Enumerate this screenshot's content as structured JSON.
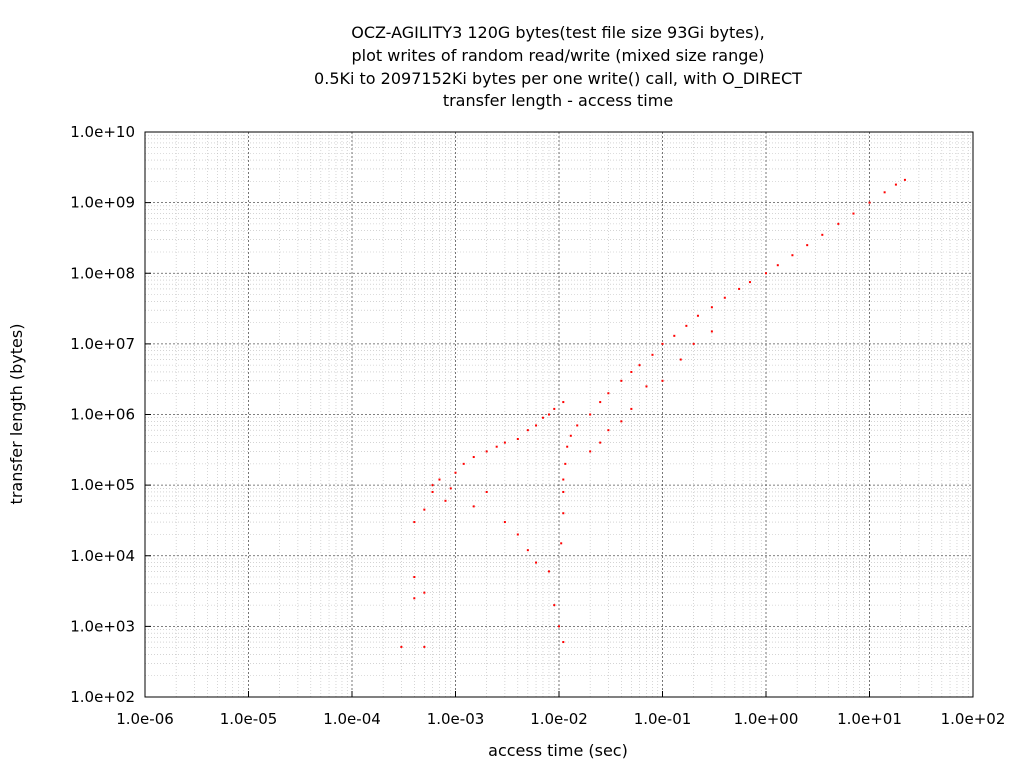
{
  "chart_data": {
    "type": "scatter",
    "title_lines": [
      "OCZ-AGILITY3 120G bytes(test file size 93Gi bytes),",
      "plot writes of random read/write (mixed size range)",
      "0.5Ki to 2097152Ki bytes per one write() call, with O_DIRECT",
      "transfer length - access time"
    ],
    "xlabel": "access time (sec)",
    "ylabel": "transfer length (bytes)",
    "xscale": "log",
    "yscale": "log",
    "xlim": [
      1e-06,
      100
    ],
    "ylim": [
      100,
      10000000000.0
    ],
    "x_ticks": [
      "1.0e-06",
      "1.0e-05",
      "1.0e-04",
      "1.0e-03",
      "1.0e-02",
      "1.0e-01",
      "1.0e+00",
      "1.0e+01",
      "1.0e+02"
    ],
    "y_ticks": [
      "1.0e+02",
      "1.0e+03",
      "1.0e+04",
      "1.0e+05",
      "1.0e+06",
      "1.0e+07",
      "1.0e+08",
      "1.0e+09",
      "1.0e+10"
    ],
    "grid": true,
    "minor_grid": true,
    "point_color": "#ff0000",
    "series": [
      {
        "points": [
          [
            0.0003,
            512
          ],
          [
            0.0005,
            512
          ],
          [
            0.0004,
            5000
          ],
          [
            0.0004,
            2500
          ],
          [
            0.0005,
            3000
          ],
          [
            0.0004,
            30000
          ],
          [
            0.0005,
            45000
          ],
          [
            0.0006,
            80000
          ],
          [
            0.0007,
            120000
          ],
          [
            0.0006,
            100000
          ],
          [
            0.0008,
            60000
          ],
          [
            0.0009,
            90000
          ],
          [
            0.001,
            150000
          ],
          [
            0.0012,
            200000
          ],
          [
            0.0015,
            250000
          ],
          [
            0.002,
            300000
          ],
          [
            0.0025,
            350000
          ],
          [
            0.003,
            400000
          ],
          [
            0.004,
            450000
          ],
          [
            0.005,
            600000
          ],
          [
            0.006,
            700000
          ],
          [
            0.007,
            900000
          ],
          [
            0.008,
            1000000
          ],
          [
            0.009,
            1200000
          ],
          [
            0.011,
            1500000
          ],
          [
            0.0015,
            50000
          ],
          [
            0.002,
            80000
          ],
          [
            0.003,
            30000
          ],
          [
            0.004,
            20000
          ],
          [
            0.005,
            12000
          ],
          [
            0.006,
            8000
          ],
          [
            0.008,
            6000
          ],
          [
            0.009,
            2000
          ],
          [
            0.01,
            1000
          ],
          [
            0.011,
            600
          ],
          [
            0.0105,
            15000
          ],
          [
            0.011,
            40000
          ],
          [
            0.011,
            80000
          ],
          [
            0.011,
            120000
          ],
          [
            0.0115,
            200000
          ],
          [
            0.012,
            350000
          ],
          [
            0.013,
            500000
          ],
          [
            0.015,
            700000
          ],
          [
            0.02,
            1000000
          ],
          [
            0.025,
            1500000
          ],
          [
            0.03,
            2000000
          ],
          [
            0.04,
            3000000
          ],
          [
            0.05,
            4000000
          ],
          [
            0.06,
            5000000
          ],
          [
            0.08,
            7000000
          ],
          [
            0.1,
            10000000
          ],
          [
            0.13,
            13000000
          ],
          [
            0.17,
            18000000
          ],
          [
            0.22,
            25000000
          ],
          [
            0.3,
            33000000
          ],
          [
            0.4,
            45000000
          ],
          [
            0.55,
            60000000
          ],
          [
            0.7,
            75000000
          ],
          [
            1.0,
            100000000
          ],
          [
            1.3,
            130000000
          ],
          [
            1.8,
            180000000
          ],
          [
            2.5,
            250000000
          ],
          [
            3.5,
            350000000
          ],
          [
            5.0,
            500000000
          ],
          [
            7.0,
            700000000
          ],
          [
            10.0,
            1000000000
          ],
          [
            14.0,
            1400000000
          ],
          [
            18.0,
            1800000000
          ],
          [
            22.0,
            2100000000
          ],
          [
            0.02,
            300000
          ],
          [
            0.025,
            400000
          ],
          [
            0.03,
            600000
          ],
          [
            0.04,
            800000
          ],
          [
            0.05,
            1200000
          ],
          [
            0.07,
            2500000
          ],
          [
            0.1,
            3000000
          ],
          [
            0.15,
            6000000
          ],
          [
            0.2,
            10000000
          ],
          [
            0.3,
            15000000
          ]
        ]
      }
    ]
  }
}
